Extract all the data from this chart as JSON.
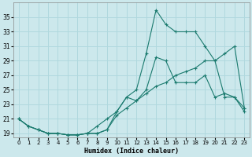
{
  "xlabel": "Humidex (Indice chaleur)",
  "ylabel": "",
  "bg_color": "#cce8ec",
  "grid_color": "#b0d8de",
  "line_color": "#1a7a6e",
  "xlim": [
    -0.5,
    23.5
  ],
  "ylim": [
    18.5,
    37.0
  ],
  "xticks": [
    0,
    1,
    2,
    3,
    4,
    5,
    6,
    7,
    8,
    9,
    10,
    11,
    12,
    13,
    14,
    15,
    16,
    17,
    18,
    19,
    20,
    21,
    22,
    23
  ],
  "yticks": [
    19,
    21,
    23,
    25,
    27,
    29,
    31,
    33,
    35
  ],
  "series1_x": [
    0,
    1,
    2,
    3,
    4,
    5,
    6,
    7,
    8,
    9,
    10,
    11,
    12,
    13,
    14,
    15,
    16,
    17,
    18,
    19,
    20,
    21,
    22,
    23
  ],
  "series1_y": [
    21,
    20,
    19.5,
    19,
    19,
    18.8,
    18.8,
    19,
    19,
    19.5,
    21.5,
    22.5,
    23.5,
    24.5,
    25.5,
    26,
    27,
    27.5,
    28,
    29,
    29,
    30,
    31,
    22.5
  ],
  "series2_x": [
    0,
    1,
    2,
    3,
    4,
    5,
    6,
    7,
    8,
    9,
    10,
    11,
    12,
    13,
    14,
    15,
    16,
    17,
    18,
    19,
    20,
    21,
    22,
    23
  ],
  "series2_y": [
    21,
    20,
    19.5,
    19,
    19,
    18.8,
    18.8,
    19,
    20,
    21,
    22,
    24,
    23.5,
    25,
    29.5,
    29,
    26,
    26,
    26,
    27,
    24,
    24.5,
    24,
    22.5
  ],
  "series3_x": [
    0,
    1,
    2,
    3,
    4,
    5,
    6,
    7,
    8,
    9,
    10,
    11,
    12,
    13,
    14,
    15,
    16,
    17,
    18,
    19,
    20,
    21,
    22,
    23
  ],
  "series3_y": [
    21,
    20,
    19.5,
    19,
    19,
    18.8,
    18.8,
    19,
    19,
    19.5,
    22,
    24,
    25,
    30,
    36,
    34,
    33,
    33,
    33,
    31,
    29,
    24,
    24,
    22
  ]
}
